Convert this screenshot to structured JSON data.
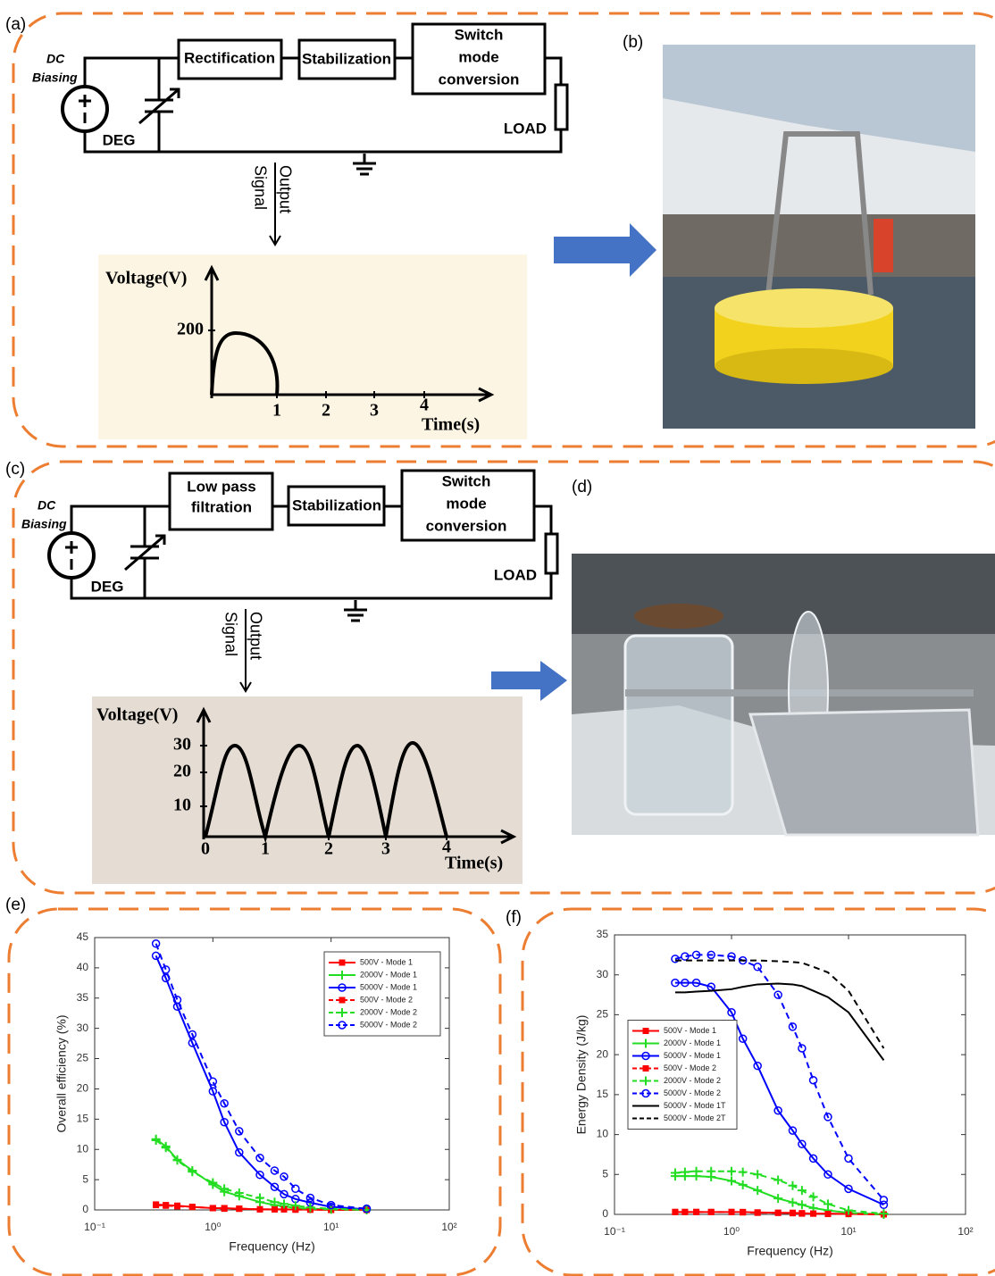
{
  "panel_labels": [
    "(a)",
    "(b)",
    "(c)",
    "(d)",
    "(e)",
    "(f)"
  ],
  "circuit_a": {
    "dc_biasing": [
      "DC",
      "Biasing"
    ],
    "deg": "DEG",
    "blocks": [
      "Rectification",
      "Stabilization",
      [
        "Switch",
        "mode",
        "conversion"
      ]
    ],
    "load": "LOAD",
    "output_signal": [
      "Output",
      "Signal"
    ]
  },
  "inset_a": {
    "y_label": "Voltage(V)",
    "x_label": "Time(s)",
    "y_ticks": [
      200
    ],
    "x_ticks": [
      1,
      2,
      3,
      4
    ]
  },
  "circuit_c": {
    "dc_biasing": [
      "DC",
      "Biasing"
    ],
    "deg": "DEG",
    "blocks": [
      [
        "Low pass",
        "filtration"
      ],
      "Stabilization",
      [
        "Switch",
        "mode",
        "conversion"
      ]
    ],
    "load": "LOAD",
    "output_signal": [
      "Output",
      "Signal"
    ]
  },
  "inset_c": {
    "y_label": "Voltage(V)",
    "x_label": "Time(s)",
    "y_ticks": [
      30,
      20,
      10
    ],
    "x_ticks": [
      0,
      1,
      2,
      3,
      4
    ]
  },
  "chart_data": [
    {
      "type": "line",
      "x_label": "Frequency (Hz)",
      "y_label": "Overall efficiency (%)",
      "xscale": "log",
      "legend": "upper right",
      "xlim": [
        0.1,
        100
      ],
      "ylim": [
        0,
        45
      ],
      "xticks": [
        {
          "value": 0.1,
          "label": "10⁻¹"
        },
        {
          "value": 1,
          "label": "10⁰"
        },
        {
          "value": 10,
          "label": "10¹"
        },
        {
          "value": 100,
          "label": "10²"
        }
      ],
      "yticks": [
        0,
        5,
        10,
        15,
        20,
        25,
        30,
        35,
        40,
        45
      ],
      "x": [
        0.33,
        0.4,
        0.5,
        0.67,
        1,
        1.25,
        1.67,
        2.5,
        3.33,
        4,
        5,
        6.67,
        10,
        20
      ],
      "series": [
        {
          "name": "500V - Mode 1",
          "color": "#ff0000",
          "dash": "solid",
          "marker": "square",
          "values": [
            0.9,
            0.8,
            0.7,
            0.5,
            0.3,
            0.3,
            0.2,
            0.1,
            0.1,
            0.1,
            0.05,
            0.05,
            0,
            0
          ]
        },
        {
          "name": "2000V - Mode 1",
          "color": "#22dd22",
          "dash": "solid",
          "marker": "plus",
          "values": [
            11.7,
            10.5,
            8.3,
            6.5,
            4.2,
            3,
            2.3,
            1.3,
            0.8,
            0.6,
            0.3,
            0.2,
            0.1,
            0
          ]
        },
        {
          "name": "5000V - Mode 1",
          "color": "#0000ff",
          "dash": "solid",
          "marker": "circle",
          "values": [
            42,
            38.3,
            33.6,
            27.6,
            19.6,
            14.5,
            9.5,
            5.8,
            3.8,
            2.6,
            1.8,
            1.2,
            0.5,
            0.1
          ]
        },
        {
          "name": "500V - Mode 2",
          "color": "#ff0000",
          "dash": "dashed",
          "marker": "square",
          "values": [
            0.8,
            0.7,
            0.6,
            0.5,
            0.3,
            0.2,
            0.2,
            0.1,
            0.1,
            0.1,
            0.05,
            0.05,
            0,
            0
          ]
        },
        {
          "name": "2000V - Mode 2",
          "color": "#22dd22",
          "dash": "dashed",
          "marker": "plus",
          "values": [
            11.5,
            10.3,
            8.2,
            6.3,
            4.5,
            3.5,
            2.8,
            2,
            1.3,
            1,
            0.7,
            0.4,
            0.2,
            0
          ]
        },
        {
          "name": "5000V - Mode 2",
          "color": "#0000ff",
          "dash": "dashed",
          "marker": "circle",
          "values": [
            44,
            39.7,
            34.7,
            29,
            21.2,
            17.6,
            13,
            8.6,
            6.5,
            5.5,
            3.5,
            2,
            0.8,
            0.2
          ]
        }
      ]
    },
    {
      "type": "line",
      "x_label": "Frequency (Hz)",
      "y_label": "Energy Density (J/kg)",
      "xscale": "log",
      "legend": "center left",
      "xlim": [
        0.1,
        100
      ],
      "ylim": [
        0,
        35
      ],
      "xticks": [
        {
          "value": 0.1,
          "label": "10⁻¹"
        },
        {
          "value": 1,
          "label": "10⁰"
        },
        {
          "value": 10,
          "label": "10¹"
        },
        {
          "value": 100,
          "label": "10²"
        }
      ],
      "yticks": [
        0,
        5,
        10,
        15,
        20,
        25,
        30,
        35
      ],
      "x": [
        0.33,
        0.4,
        0.5,
        0.67,
        1,
        1.25,
        1.67,
        2.5,
        3.33,
        4,
        5,
        6.67,
        10,
        20
      ],
      "series": [
        {
          "name": "500V - Mode 1",
          "color": "#ff0000",
          "dash": "solid",
          "marker": "square",
          "values": [
            0.3,
            0.3,
            0.3,
            0.3,
            0.3,
            0.3,
            0.25,
            0.2,
            0.2,
            0.15,
            0.1,
            0.1,
            0.05,
            0
          ]
        },
        {
          "name": "2000V - Mode 1",
          "color": "#22dd22",
          "dash": "solid",
          "marker": "plus",
          "values": [
            4.8,
            4.8,
            4.8,
            4.7,
            4.2,
            3.7,
            3,
            2,
            1.5,
            1.2,
            0.8,
            0.5,
            0.2,
            0
          ]
        },
        {
          "name": "5000V - Mode 1",
          "color": "#0000ff",
          "dash": "solid",
          "marker": "circle",
          "values": [
            29,
            29,
            29,
            28.5,
            25.3,
            22,
            18.6,
            13,
            10.5,
            8.8,
            7,
            5,
            3.2,
            1.2
          ]
        },
        {
          "name": "500V - Mode 2",
          "color": "#ff0000",
          "dash": "dashed",
          "marker": "square",
          "values": [
            0.3,
            0.3,
            0.3,
            0.3,
            0.3,
            0.25,
            0.2,
            0.2,
            0.15,
            0.1,
            0.1,
            0.05,
            0.05,
            0
          ]
        },
        {
          "name": "2000V - Mode 2",
          "color": "#22dd22",
          "dash": "dashed",
          "marker": "plus",
          "values": [
            5.2,
            5.3,
            5.4,
            5.4,
            5.4,
            5.3,
            5,
            4.3,
            3.6,
            3,
            2.2,
            1.3,
            0.5,
            0.1
          ]
        },
        {
          "name": "5000V - Mode 2",
          "color": "#0000ff",
          "dash": "dashed",
          "marker": "circle",
          "values": [
            32,
            32.3,
            32.5,
            32.5,
            32.3,
            31.8,
            31,
            27.5,
            23.5,
            20.8,
            16.8,
            12.2,
            7,
            1.8
          ]
        },
        {
          "name": "5000V - Mode 1T",
          "color": "#000000",
          "dash": "solid",
          "marker": "none",
          "values": [
            27.8,
            27.8,
            27.9,
            28,
            28.2,
            28.5,
            28.8,
            28.9,
            28.8,
            28.6,
            28,
            27.2,
            25.3,
            19.3
          ]
        },
        {
          "name": "5000V - Mode 2T",
          "color": "#000000",
          "dash": "dashed",
          "marker": "none",
          "values": [
            31.8,
            31.8,
            31.8,
            31.8,
            31.8,
            31.8,
            31.8,
            31.7,
            31.6,
            31.5,
            31,
            30.3,
            28,
            20.8
          ]
        }
      ]
    }
  ]
}
